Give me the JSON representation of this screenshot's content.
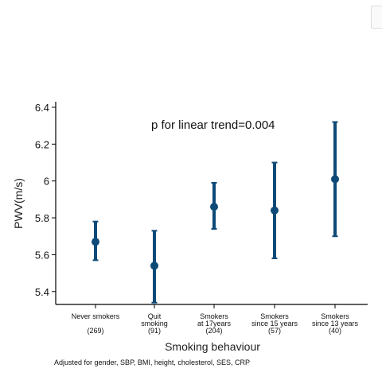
{
  "chart_data": {
    "type": "scatter",
    "xlabel": "Smoking behaviour",
    "ylabel": "PWV(m/s)",
    "ylim": [
      5.33,
      6.43
    ],
    "yticks": [
      "5.4",
      "5.6",
      "5.8",
      "6",
      "6.2",
      "6.4"
    ],
    "annotation": "p for linear trend=0.004",
    "footnote": "Adjusted for gender, SBP, BMI, height, cholesterol, SES, CRP",
    "marker_color": "#0e4a77",
    "grid": false,
    "categories": [
      {
        "lines": [
          "Never smokers",
          "",
          "(269)"
        ]
      },
      {
        "lines": [
          "Quit",
          "smoking",
          "(91)"
        ]
      },
      {
        "lines": [
          "Smokers",
          "at 17years",
          "(204)"
        ]
      },
      {
        "lines": [
          "Smokers",
          "since 15 years",
          "(57)"
        ]
      },
      {
        "lines": [
          "Smokers",
          "since 13 years",
          "(40)"
        ]
      }
    ],
    "points": [
      {
        "y": 5.67,
        "lower": 5.57,
        "upper": 5.78
      },
      {
        "y": 5.54,
        "lower": 5.34,
        "upper": 5.73
      },
      {
        "y": 5.86,
        "lower": 5.74,
        "upper": 5.99
      },
      {
        "y": 5.84,
        "lower": 5.58,
        "upper": 6.1
      },
      {
        "y": 6.01,
        "lower": 5.7,
        "upper": 6.32
      }
    ]
  }
}
